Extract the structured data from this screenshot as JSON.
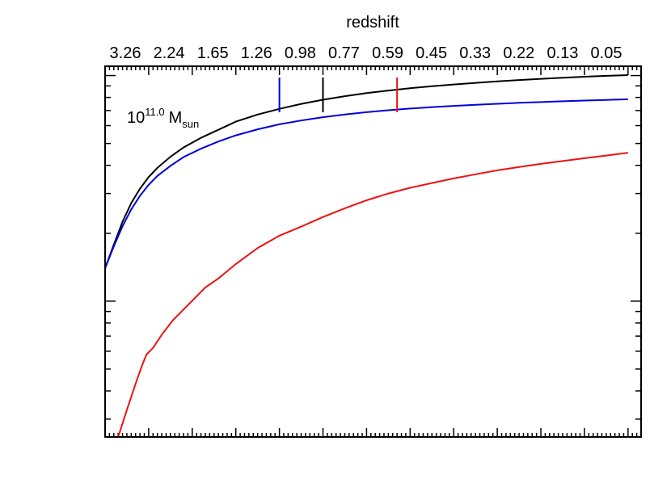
{
  "chart_data": {
    "type": "line",
    "title": "",
    "top_axis": {
      "label": "redshift",
      "ticks": [
        "3.26",
        "2.24",
        "1.65",
        "1.26",
        "0.98",
        "0.77",
        "0.59",
        "0.45",
        "0.33",
        "0.22",
        "0.13",
        "0.05"
      ]
    },
    "y_axis": {
      "scale": "log",
      "range": [
        0.025,
        1.1
      ]
    },
    "x_axis": {
      "range": [
        0,
        12.3
      ]
    },
    "annotation": {
      "base": "10",
      "exponent": "11.0",
      "unit": "M",
      "unit_sub": "sun"
    },
    "series": [
      {
        "color": "#000000",
        "x": [
          0,
          0.2,
          0.4,
          0.6,
          0.8,
          1.0,
          1.2,
          1.5,
          1.8,
          2.2,
          2.6,
          3.0,
          3.5,
          4.0,
          4.5,
          5.0,
          5.5,
          6.0,
          6.5,
          7.0,
          7.5,
          8.0,
          8.5,
          9.0,
          9.5,
          10.0,
          10.5,
          11.0,
          11.5,
          12.0
        ],
        "y": [
          0.14,
          0.178,
          0.225,
          0.272,
          0.315,
          0.355,
          0.39,
          0.437,
          0.48,
          0.53,
          0.575,
          0.625,
          0.672,
          0.712,
          0.749,
          0.781,
          0.81,
          0.836,
          0.858,
          0.879,
          0.897,
          0.913,
          0.928,
          0.942,
          0.955,
          0.967,
          0.978,
          0.988,
          0.997,
          1.005
        ]
      },
      {
        "color": "#0000dd",
        "x": [
          0,
          0.2,
          0.4,
          0.6,
          0.8,
          1.0,
          1.2,
          1.5,
          1.8,
          2.2,
          2.6,
          3.0,
          3.5,
          4.0,
          4.5,
          5.0,
          5.5,
          6.0,
          6.5,
          7.0,
          7.5,
          8.0,
          8.5,
          9.0,
          9.5,
          10.0,
          10.5,
          11.0,
          11.5,
          12.0
        ],
        "y": [
          0.14,
          0.175,
          0.215,
          0.255,
          0.293,
          0.328,
          0.359,
          0.398,
          0.435,
          0.474,
          0.51,
          0.543,
          0.578,
          0.608,
          0.632,
          0.654,
          0.672,
          0.688,
          0.702,
          0.714,
          0.725,
          0.734,
          0.742,
          0.75,
          0.757,
          0.763,
          0.769,
          0.775,
          0.78,
          0.785
        ]
      },
      {
        "color": "#ee1111",
        "x": [
          0.3,
          0.5,
          0.7,
          0.85,
          0.95,
          1.1,
          1.3,
          1.55,
          1.9,
          2.3,
          2.6,
          3.0,
          3.5,
          4.0,
          4.5,
          5.0,
          5.5,
          6.0,
          6.5,
          7.0,
          7.5,
          8.0,
          8.5,
          9.0,
          9.5,
          10.0,
          10.5,
          11.0,
          11.5,
          12.0
        ],
        "y": [
          0.025,
          0.033,
          0.043,
          0.052,
          0.058,
          0.062,
          0.071,
          0.082,
          0.096,
          0.115,
          0.126,
          0.146,
          0.172,
          0.195,
          0.214,
          0.236,
          0.258,
          0.28,
          0.3,
          0.318,
          0.334,
          0.35,
          0.365,
          0.38,
          0.393,
          0.406,
          0.418,
          0.43,
          0.442,
          0.455
        ]
      }
    ],
    "markers": [
      {
        "color": "#0000dd",
        "x": 4.0
      },
      {
        "color": "#000000",
        "x": 5.0
      },
      {
        "color": "#ee1111",
        "x": 6.7
      }
    ]
  }
}
